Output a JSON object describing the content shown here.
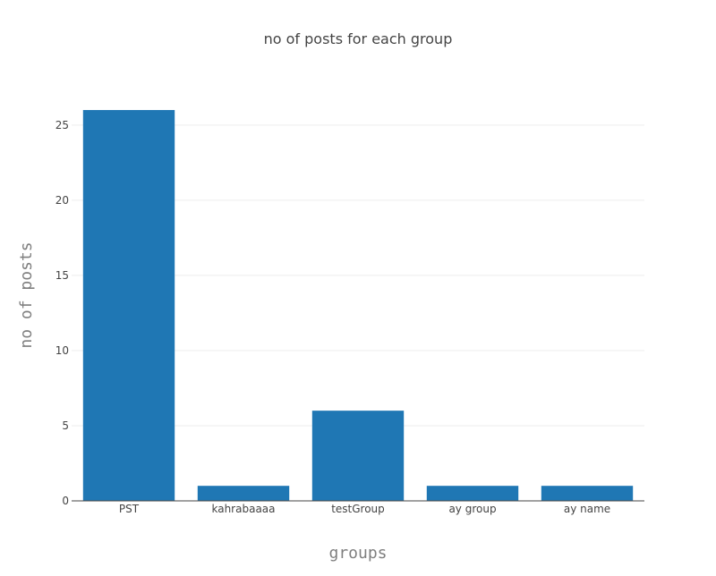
{
  "chart_data": {
    "type": "bar",
    "title": "no of posts for each group",
    "xlabel": "groups",
    "ylabel": "no of posts",
    "categories": [
      "PST",
      "kahrabaaaa",
      "testGroup",
      "ay group",
      "ay name"
    ],
    "values": [
      26,
      1,
      6,
      1,
      1
    ],
    "ylim": [
      0,
      27.37
    ],
    "yticks": [
      0,
      5,
      10,
      15,
      20,
      25
    ],
    "bar_color": "#1f77b4",
    "grid": true,
    "legend": "none"
  }
}
